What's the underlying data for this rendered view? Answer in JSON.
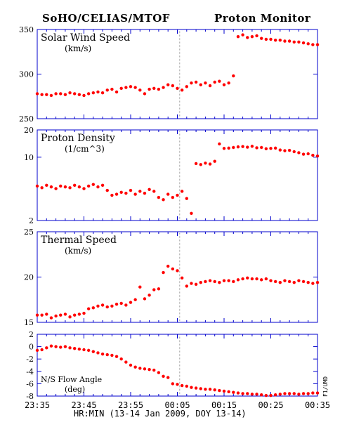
{
  "header": {
    "left": "SoHO/CELIAS/MTOF",
    "right": "Proton Monitor"
  },
  "x_axis": {
    "label": "HR:MIN (13-14 Jan 2009, DOY 13-14)",
    "ticks": [
      "23:35",
      "23:45",
      "23:55",
      "00:05",
      "00:15",
      "00:25",
      "00:35"
    ]
  },
  "side_label": "F1/UMD",
  "colors": {
    "frame": "#0000cc",
    "points": "#ff0000",
    "marker_line": "#888888",
    "text": "#000000"
  },
  "chart_data": [
    {
      "type": "scatter",
      "title": "Solar Wind Speed",
      "unit": "(km/s)",
      "ylim": [
        250,
        350
      ],
      "ticks": [
        250,
        300,
        350
      ],
      "x_minutes_after_2335": [
        0,
        1,
        2,
        3,
        4,
        5,
        6,
        7,
        8,
        9,
        10,
        11,
        12,
        13,
        14,
        15,
        16,
        17,
        18,
        19,
        20,
        21,
        22,
        23,
        24,
        25,
        26,
        27,
        28,
        29,
        30,
        31,
        32,
        33,
        34,
        35,
        36,
        37,
        38,
        39,
        40,
        41,
        42,
        43,
        44,
        45,
        46,
        47,
        48,
        49,
        50,
        51,
        52,
        53,
        54,
        55,
        56,
        57,
        58,
        59,
        60
      ],
      "y": [
        278,
        277,
        277,
        276,
        278,
        278,
        277,
        279,
        278,
        277,
        276,
        278,
        279,
        280,
        279,
        282,
        283,
        280,
        284,
        285,
        286,
        285,
        282,
        278,
        283,
        284,
        283,
        285,
        288,
        287,
        284,
        282,
        286,
        290,
        291,
        288,
        290,
        287,
        291,
        292,
        288,
        290,
        298,
        342,
        344,
        341,
        342,
        343,
        340,
        339,
        339,
        338,
        338,
        337,
        337,
        336,
        336,
        335,
        334,
        333,
        333
      ]
    },
    {
      "type": "scatter",
      "title": "Proton Density",
      "unit": "(1/cm^3)",
      "ylim": [
        2,
        20
      ],
      "log": true,
      "ticks": [
        2,
        10,
        20
      ],
      "x_minutes_after_2335": [
        0,
        1,
        2,
        3,
        4,
        5,
        6,
        7,
        8,
        9,
        10,
        11,
        12,
        13,
        14,
        15,
        16,
        17,
        18,
        19,
        20,
        21,
        22,
        23,
        24,
        25,
        26,
        27,
        28,
        29,
        30,
        31,
        32,
        33,
        34,
        35,
        36,
        37,
        38,
        39,
        40,
        41,
        42,
        43,
        44,
        45,
        46,
        47,
        48,
        49,
        50,
        51,
        52,
        53,
        54,
        55,
        56,
        57,
        58,
        59,
        60
      ],
      "y": [
        4.8,
        4.6,
        4.9,
        4.7,
        4.5,
        4.8,
        4.7,
        4.6,
        4.9,
        4.7,
        4.5,
        4.8,
        5.0,
        4.7,
        4.9,
        4.3,
        3.8,
        3.9,
        4.1,
        4.0,
        4.3,
        3.9,
        4.2,
        4.0,
        4.4,
        4.2,
        3.6,
        3.4,
        3.9,
        3.6,
        3.8,
        4.2,
        3.5,
        2.4,
        8.5,
        8.3,
        8.6,
        8.4,
        9.0,
        14.0,
        12.5,
        12.6,
        12.8,
        13.0,
        13.1,
        12.9,
        13.2,
        12.7,
        12.8,
        12.4,
        12.5,
        12.6,
        12.0,
        11.8,
        11.9,
        11.5,
        11.2,
        10.8,
        10.9,
        10.5,
        10.3
      ]
    },
    {
      "type": "scatter",
      "title": "Thermal Speed",
      "unit": "(km/s)",
      "ylim": [
        15,
        25
      ],
      "ticks": [
        15,
        20,
        25
      ],
      "x_minutes_after_2335": [
        0,
        1,
        2,
        3,
        4,
        5,
        6,
        7,
        8,
        9,
        10,
        11,
        12,
        13,
        14,
        15,
        16,
        17,
        18,
        19,
        20,
        21,
        22,
        23,
        24,
        25,
        26,
        27,
        28,
        29,
        30,
        31,
        32,
        33,
        34,
        35,
        36,
        37,
        38,
        39,
        40,
        41,
        42,
        43,
        44,
        45,
        46,
        47,
        48,
        49,
        50,
        51,
        52,
        53,
        54,
        55,
        56,
        57,
        58,
        59,
        60
      ],
      "y": [
        15.8,
        15.8,
        15.9,
        15.5,
        15.7,
        15.8,
        15.9,
        15.6,
        15.8,
        15.9,
        16.0,
        16.5,
        16.6,
        16.8,
        16.9,
        16.7,
        16.8,
        17.0,
        17.1,
        16.9,
        17.2,
        17.5,
        18.9,
        17.6,
        18.0,
        18.6,
        18.7,
        20.5,
        21.2,
        20.9,
        20.7,
        19.9,
        19.0,
        19.3,
        19.2,
        19.4,
        19.5,
        19.6,
        19.5,
        19.4,
        19.6,
        19.6,
        19.5,
        19.7,
        19.8,
        19.9,
        19.8,
        19.8,
        19.7,
        19.8,
        19.6,
        19.5,
        19.4,
        19.6,
        19.5,
        19.4,
        19.6,
        19.5,
        19.4,
        19.3,
        19.4
      ]
    },
    {
      "type": "scatter",
      "title": "N/S Flow Angle",
      "unit": "(deg)",
      "ylim": [
        -8,
        2
      ],
      "ticks": [
        -8,
        -6,
        -4,
        -2,
        0,
        2
      ],
      "x_minutes_after_2335": [
        0,
        1,
        2,
        3,
        4,
        5,
        6,
        7,
        8,
        9,
        10,
        11,
        12,
        13,
        14,
        15,
        16,
        17,
        18,
        19,
        20,
        21,
        22,
        23,
        24,
        25,
        26,
        27,
        28,
        29,
        30,
        31,
        32,
        33,
        34,
        35,
        36,
        37,
        38,
        39,
        40,
        41,
        42,
        43,
        44,
        45,
        46,
        47,
        48,
        49,
        50,
        51,
        52,
        53,
        54,
        55,
        56,
        57,
        58,
        59,
        60
      ],
      "y": [
        -0.6,
        -0.5,
        -0.2,
        0.1,
        0.0,
        -0.1,
        0.0,
        -0.2,
        -0.3,
        -0.4,
        -0.5,
        -0.6,
        -0.8,
        -1.0,
        -1.2,
        -1.3,
        -1.4,
        -1.6,
        -2.0,
        -2.5,
        -3.0,
        -3.3,
        -3.5,
        -3.6,
        -3.7,
        -3.8,
        -4.2,
        -4.8,
        -5.0,
        -6.0,
        -6.1,
        -6.3,
        -6.4,
        -6.6,
        -6.7,
        -6.8,
        -6.9,
        -6.9,
        -7.0,
        -7.1,
        -7.2,
        -7.3,
        -7.4,
        -7.5,
        -7.6,
        -7.6,
        -7.7,
        -7.7,
        -7.8,
        -7.9,
        -7.9,
        -7.8,
        -7.7,
        -7.6,
        -7.6,
        -7.6,
        -7.7,
        -7.6,
        -7.6,
        -7.5,
        -7.5
      ]
    }
  ]
}
